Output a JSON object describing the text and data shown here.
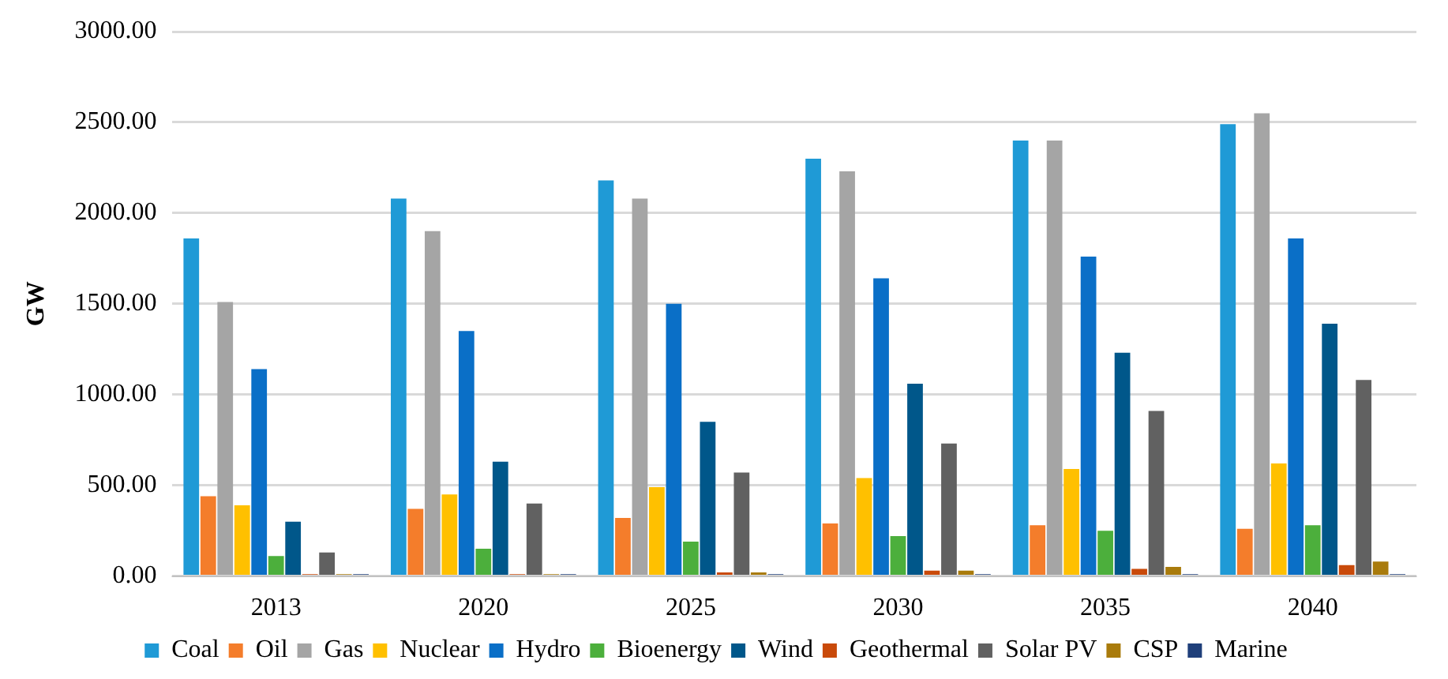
{
  "chart_data": {
    "type": "bar",
    "ylabel": "GW",
    "categories": [
      "2013",
      "2020",
      "2025",
      "2030",
      "2035",
      "2040"
    ],
    "series": [
      {
        "name": "Coal",
        "color": "#1f9ad6",
        "values": [
          1860,
          2080,
          2180,
          2300,
          2400,
          2490
        ]
      },
      {
        "name": "Oil",
        "color": "#f47d2b",
        "values": [
          440,
          370,
          320,
          290,
          280,
          260
        ]
      },
      {
        "name": "Gas",
        "color": "#a5a5a5",
        "values": [
          1510,
          1900,
          2080,
          2230,
          2400,
          2550
        ]
      },
      {
        "name": "Nuclear",
        "color": "#ffc000",
        "values": [
          390,
          450,
          490,
          540,
          590,
          620
        ]
      },
      {
        "name": "Hydro",
        "color": "#0a6fc7",
        "values": [
          1140,
          1350,
          1500,
          1640,
          1760,
          1860
        ]
      },
      {
        "name": "Bioenergy",
        "color": "#4caf3c",
        "values": [
          110,
          150,
          190,
          220,
          250,
          280
        ]
      },
      {
        "name": "Wind",
        "color": "#00578a",
        "values": [
          300,
          630,
          850,
          1060,
          1230,
          1390
        ]
      },
      {
        "name": "Geothermal",
        "color": "#c94a0a",
        "values": [
          10,
          10,
          20,
          30,
          40,
          60
        ]
      },
      {
        "name": "Solar PV",
        "color": "#616161",
        "values": [
          130,
          400,
          570,
          730,
          910,
          1080
        ]
      },
      {
        "name": "CSP",
        "color": "#a97b0c",
        "values": [
          10,
          10,
          20,
          30,
          50,
          80
        ]
      },
      {
        "name": "Marine",
        "color": "#1f3f7a",
        "values": [
          10,
          10,
          10,
          10,
          10,
          10
        ]
      }
    ],
    "ylim": [
      0,
      3000
    ],
    "yticks": [
      {
        "value": 0,
        "label": "0.00"
      },
      {
        "value": 500,
        "label": "500.00"
      },
      {
        "value": 1000,
        "label": "1000.00"
      },
      {
        "value": 1500,
        "label": "1500.00"
      },
      {
        "value": 2000,
        "label": "2000.00"
      },
      {
        "value": 2500,
        "label": "2500.00"
      },
      {
        "value": 3000,
        "label": "3000.00"
      }
    ],
    "grid": "y",
    "legend": "bottom"
  }
}
